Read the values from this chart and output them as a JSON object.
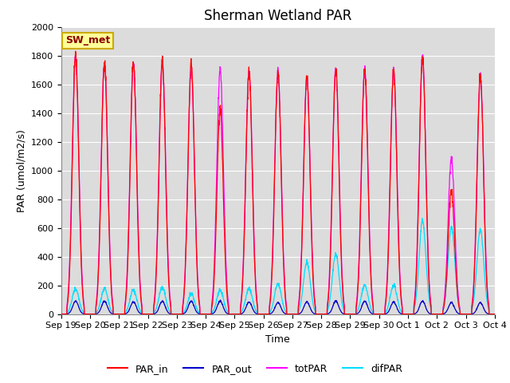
{
  "title": "Sherman Wetland PAR",
  "ylabel": "PAR (umol/m2/s)",
  "xlabel": "Time",
  "legend_label": "SW_met",
  "ylim": [
    0,
    2000
  ],
  "colors": {
    "PAR_in": "#ff0000",
    "PAR_out": "#0000cc",
    "totPAR": "#ff00ff",
    "difPAR": "#00ddff"
  },
  "plot_bg": "#dcdcdc",
  "xtick_labels": [
    "Sep 19",
    "Sep 20",
    "Sep 21",
    "Sep 22",
    "Sep 23",
    "Sep 24",
    "Sep 25",
    "Sep 26",
    "Sep 27",
    "Sep 28",
    "Sep 29",
    "Sep 30",
    "Oct 1",
    "Oct 2",
    "Oct 3",
    "Oct 4"
  ],
  "num_days": 15,
  "title_fontsize": 12,
  "legend_box_color": "#ffff99",
  "legend_box_edge": "#ccaa00",
  "par_in_peaks": [
    1800,
    1750,
    1750,
    1760,
    1750,
    1430,
    1680,
    1680,
    1650,
    1710,
    1700,
    1700,
    1790,
    860,
    1660
  ],
  "tot_peaks": [
    1800,
    1750,
    1750,
    1760,
    1700,
    1700,
    1680,
    1680,
    1650,
    1710,
    1700,
    1700,
    1790,
    1080,
    1660
  ],
  "par_out_peaks": [
    90,
    90,
    85,
    90,
    90,
    90,
    85,
    80,
    85,
    90,
    90,
    85,
    90,
    80,
    80
  ],
  "dif_peaks": [
    175,
    175,
    165,
    185,
    140,
    165,
    175,
    210,
    360,
    420,
    200,
    200,
    650,
    600,
    590
  ]
}
